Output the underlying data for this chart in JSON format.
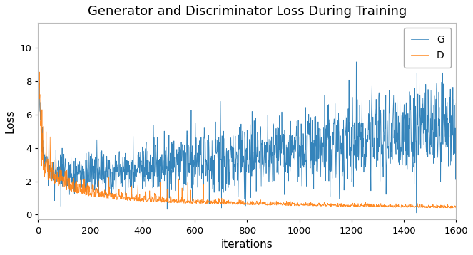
{
  "title": "Generator and Discriminator Loss During Training",
  "xlabel": "iterations",
  "ylabel": "Loss",
  "xlim": [
    0,
    1600
  ],
  "ylim": [
    -0.3,
    11.5
  ],
  "yticks": [
    0,
    2,
    4,
    6,
    8,
    10
  ],
  "xticks": [
    0,
    200,
    400,
    600,
    800,
    1000,
    1200,
    1400,
    1600
  ],
  "g_color": "#1f77b4",
  "d_color": "#ff7f0e",
  "legend_labels": [
    "G",
    "D"
  ],
  "n_points": 1601,
  "seed": 17,
  "background_color": "#ffffff",
  "title_fontsize": 13,
  "label_fontsize": 11
}
